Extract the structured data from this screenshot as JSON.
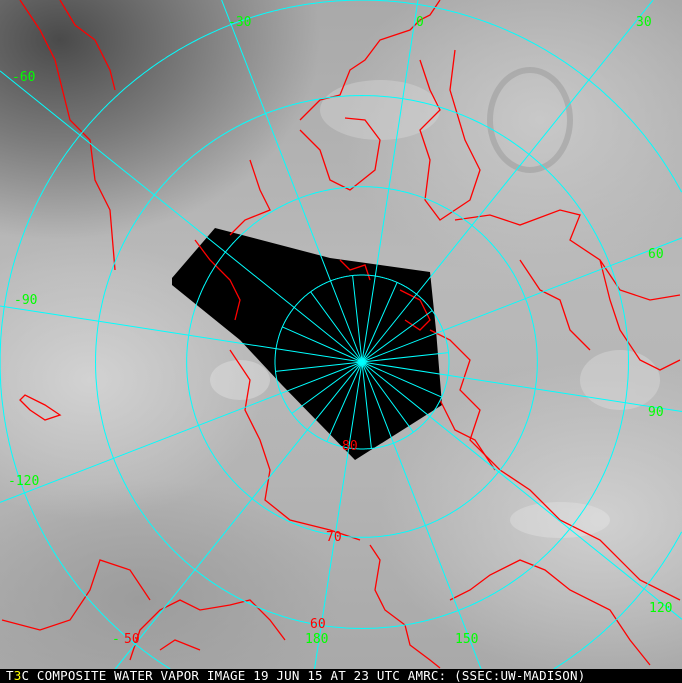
{
  "caption": {
    "prefix": "T",
    "marker": "3",
    "text": "C COMPOSITE WATER VAPOR IMAGE 19 JUN 15 AT 23 UTC AMRC: (SSEC:UW-MADISON)"
  },
  "projection": {
    "type": "polar-stereographic",
    "pole": "north",
    "meridian_0_rotation_deg": 8.8
  },
  "colors": {
    "grid": "#00ffff",
    "coastline": "#ff0000",
    "longitude_labels": "#00ff00",
    "latitude_labels": "#ff0000",
    "no_data": "#000000"
  },
  "longitude_labels": [
    {
      "lon": -30,
      "text": "-30"
    },
    {
      "lon": 0,
      "text": "0"
    },
    {
      "lon": 30,
      "text": "30"
    },
    {
      "lon": -60,
      "text": "-60"
    },
    {
      "lon": 60,
      "text": "60"
    },
    {
      "lon": -90,
      "text": "-90"
    },
    {
      "lon": 90,
      "text": "90"
    },
    {
      "lon": -120,
      "text": "-120"
    },
    {
      "lon": 120,
      "text": "120"
    },
    {
      "lon": 150,
      "text": "150"
    },
    {
      "lon": 180,
      "text": "180"
    },
    {
      "lon": -150,
      "text": "-"
    }
  ],
  "latitude_labels": [
    {
      "lat": 80,
      "text": "80"
    },
    {
      "lat": 70,
      "text": "70"
    },
    {
      "lat": 60,
      "text": "60"
    },
    {
      "lat": 50,
      "text": "50"
    }
  ]
}
